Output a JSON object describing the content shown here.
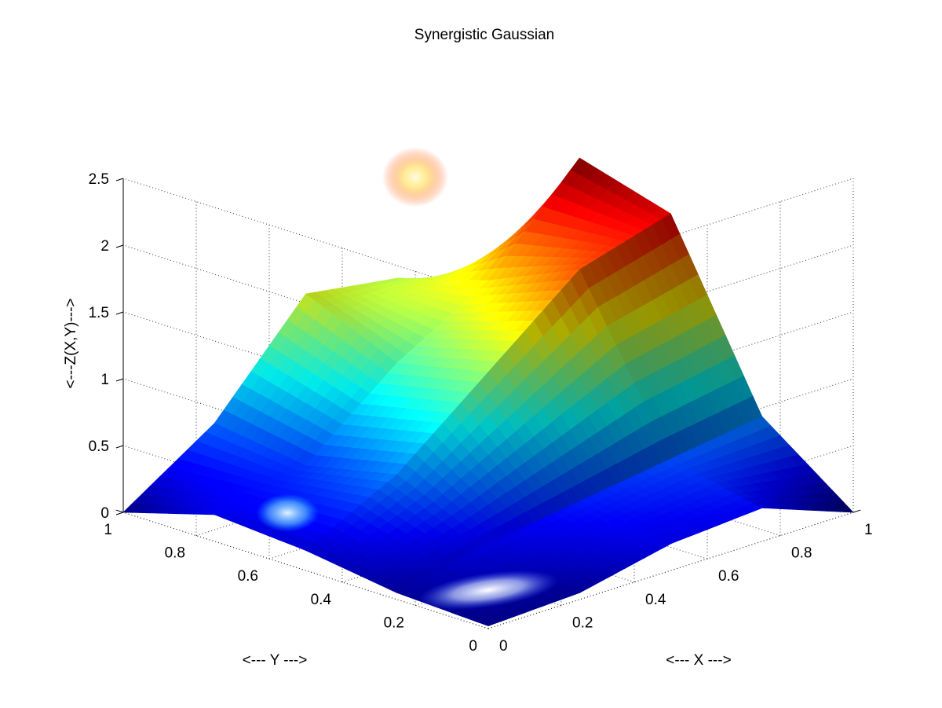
{
  "chart_data": {
    "type": "surface3d",
    "title": "Synergistic Gaussian",
    "xlabel": "<--- X --->",
    "ylabel": "<--- Y --->",
    "zlabel": "<---Z(X,Y)--->",
    "xlim": [
      0,
      1
    ],
    "ylim": [
      0,
      1
    ],
    "zlim": [
      0,
      2.5
    ],
    "x_ticks": [
      "0",
      "0.2",
      "0.4",
      "0.6",
      "0.8",
      "1"
    ],
    "y_ticks": [
      "0",
      "0.2",
      "0.4",
      "0.6",
      "0.8",
      "1"
    ],
    "z_ticks": [
      "0",
      "0.5",
      "1",
      "1.5",
      "2",
      "2.5"
    ],
    "grid": true,
    "colormap": "jet",
    "x": [
      0,
      0.25,
      0.5,
      0.75,
      1
    ],
    "y": [
      0,
      0.25,
      0.5,
      0.75,
      1
    ],
    "z": [
      [
        0.02,
        0.05,
        0.15,
        0.2,
        0.0
      ],
      [
        0.05,
        0.2,
        0.5,
        0.35,
        0.45
      ],
      [
        0.2,
        0.3,
        1.05,
        0.9,
        1.2
      ],
      [
        0.25,
        0.4,
        1.6,
        1.3,
        1.1
      ],
      [
        0.0,
        0.5,
        1.8,
        2.0,
        0.7
      ]
    ],
    "surface_note": "z[i][j] is Z at x[i], y[j]"
  }
}
